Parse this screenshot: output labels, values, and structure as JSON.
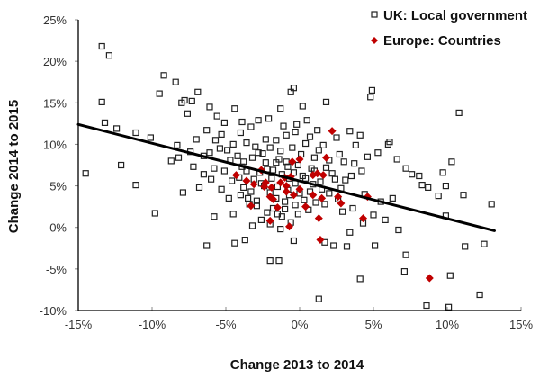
{
  "chart_data": {
    "type": "scatter",
    "title": "",
    "xlabel": "Change 2013 to 2014",
    "ylabel": "Change 2014 to 2015",
    "xlim": [
      -15,
      15
    ],
    "ylim": [
      -10,
      25
    ],
    "xticks": [
      -15,
      -10,
      -5,
      0,
      5,
      10,
      15
    ],
    "yticks": [
      -10,
      -5,
      0,
      5,
      10,
      15,
      20,
      25
    ],
    "xtick_labels": [
      "-15%",
      "-10%",
      "-5%",
      "0%",
      "5%",
      "10%",
      "15%"
    ],
    "ytick_labels": [
      "-10%",
      "-5%",
      "0%",
      "5%",
      "10%",
      "15%",
      "20%",
      "25%"
    ],
    "grid": false,
    "legend_position": "top-right",
    "colors": {
      "uk": "#222222",
      "europe": "#c00000",
      "trend": "#000000",
      "axis": "#000000"
    },
    "trendline": {
      "x": [
        -15,
        13.2
      ],
      "y": [
        12.4,
        -0.4
      ]
    },
    "series": [
      {
        "name": "UK: Local government",
        "marker": "square-open",
        "points": [
          [
            -13.4,
            21.8
          ],
          [
            -12.9,
            20.7
          ],
          [
            -13.4,
            15.1
          ],
          [
            -13.2,
            12.6
          ],
          [
            -12.4,
            11.9
          ],
          [
            -11.1,
            11.4
          ],
          [
            -14.5,
            6.5
          ],
          [
            -12.1,
            7.5
          ],
          [
            -11.1,
            5.1
          ],
          [
            -10.1,
            10.8
          ],
          [
            -9.5,
            16.1
          ],
          [
            -9.2,
            18.3
          ],
          [
            -8.4,
            17.5
          ],
          [
            -7.8,
            15.3
          ],
          [
            -8.0,
            15.0
          ],
          [
            -7.6,
            13.7
          ],
          [
            -9.8,
            1.7
          ],
          [
            -8.7,
            8.0
          ],
          [
            -7.0,
            10.6
          ],
          [
            -8.2,
            8.4
          ],
          [
            -7.2,
            7.3
          ],
          [
            -6.5,
            6.4
          ],
          [
            -6.0,
            5.8
          ],
          [
            -5.3,
            4.6
          ],
          [
            -5.7,
            10.5
          ],
          [
            -5.3,
            11.2
          ],
          [
            -4.9,
            9.3
          ],
          [
            -4.5,
            10.0
          ],
          [
            -3.9,
            12.7
          ],
          [
            -4.4,
            14.3
          ],
          [
            -5.1,
            12.6
          ],
          [
            -5.6,
            13.4
          ],
          [
            -6.1,
            14.5
          ],
          [
            -6.9,
            16.3
          ],
          [
            -7.3,
            15.2
          ],
          [
            -6.3,
            11.7
          ],
          [
            -4.2,
            8.6
          ],
          [
            -3.8,
            7.9
          ],
          [
            -3.2,
            8.4
          ],
          [
            -2.8,
            9.0
          ],
          [
            -2.3,
            7.8
          ],
          [
            -3.6,
            6.8
          ],
          [
            -4.1,
            6.0
          ],
          [
            -3.1,
            5.8
          ],
          [
            -2.6,
            5.3
          ],
          [
            -2.0,
            4.2
          ],
          [
            -1.6,
            3.5
          ],
          [
            -2.9,
            3.2
          ],
          [
            -3.4,
            2.8
          ],
          [
            -4.5,
            1.6
          ],
          [
            -5.8,
            1.3
          ],
          [
            -6.3,
            -2.2
          ],
          [
            -4.4,
            -1.9
          ],
          [
            -3.7,
            -1.5
          ],
          [
            -2.0,
            -4.0
          ],
          [
            -1.4,
            -4.0
          ],
          [
            -0.4,
            -1.6
          ],
          [
            -0.6,
            0.6
          ],
          [
            -1.2,
            1.3
          ],
          [
            -1.8,
            2.3
          ],
          [
            -2.6,
            0.9
          ],
          [
            -0.7,
            3.9
          ],
          [
            0.3,
            3.3
          ],
          [
            0.6,
            2.1
          ],
          [
            1.3,
            -8.6
          ],
          [
            1.7,
            -1.8
          ],
          [
            2.3,
            -2.2
          ],
          [
            3.2,
            -2.3
          ],
          [
            3.4,
            -0.6
          ],
          [
            4.1,
            -6.2
          ],
          [
            5.1,
            -2.2
          ],
          [
            4.3,
            0.5
          ],
          [
            5.0,
            1.5
          ],
          [
            5.8,
            0.9
          ],
          [
            6.7,
            -0.3
          ],
          [
            7.2,
            -3.3
          ],
          [
            7.1,
            -5.3
          ],
          [
            8.6,
            -9.4
          ],
          [
            10.1,
            -9.6
          ],
          [
            10.2,
            -5.8
          ],
          [
            9.9,
            1.4
          ],
          [
            11.2,
            -2.3
          ],
          [
            12.5,
            -2.0
          ],
          [
            12.2,
            -8.1
          ],
          [
            13.0,
            2.8
          ],
          [
            11.1,
            3.9
          ],
          [
            9.4,
            3.8
          ],
          [
            8.7,
            4.8
          ],
          [
            9.9,
            5.0
          ],
          [
            10.3,
            7.9
          ],
          [
            8.1,
            6.2
          ],
          [
            7.6,
            6.4
          ],
          [
            6.6,
            8.2
          ],
          [
            6.0,
            10.0
          ],
          [
            5.3,
            9.0
          ],
          [
            4.6,
            8.5
          ],
          [
            3.7,
            7.7
          ],
          [
            4.8,
            15.7
          ],
          [
            4.9,
            16.5
          ],
          [
            1.8,
            15.1
          ],
          [
            0.2,
            14.6
          ],
          [
            -0.6,
            16.3
          ],
          [
            -0.4,
            16.8
          ],
          [
            -1.3,
            14.3
          ],
          [
            -2.1,
            13.1
          ],
          [
            -2.8,
            12.9
          ],
          [
            -3.3,
            12.1
          ],
          [
            -0.2,
            12.4
          ],
          [
            0.5,
            12.9
          ],
          [
            1.2,
            11.7
          ],
          [
            2.5,
            10.8
          ],
          [
            3.4,
            11.6
          ],
          [
            10.8,
            13.8
          ],
          [
            6.1,
            10.3
          ],
          [
            7.2,
            7.1
          ],
          [
            9.7,
            6.6
          ],
          [
            8.3,
            5.1
          ],
          [
            6.3,
            3.5
          ],
          [
            5.5,
            3.1
          ],
          [
            4.4,
            4.0
          ],
          [
            3.1,
            5.7
          ],
          [
            2.2,
            6.5
          ],
          [
            2.8,
            4.7
          ],
          [
            3.0,
            7.9
          ],
          [
            3.8,
            9.9
          ],
          [
            4.1,
            11.1
          ],
          [
            1.6,
            9.9
          ],
          [
            0.7,
            10.9
          ],
          [
            -0.9,
            11.1
          ],
          [
            -1.6,
            10.5
          ],
          [
            -2.3,
            10.6
          ],
          [
            -1.3,
            9.2
          ],
          [
            -0.5,
            9.6
          ],
          [
            0.1,
            8.8
          ],
          [
            1.0,
            8.4
          ],
          [
            -0.1,
            7.5
          ],
          [
            -0.9,
            7.9
          ],
          [
            -1.6,
            7.8
          ],
          [
            -2.2,
            7.0
          ],
          [
            -2.7,
            6.6
          ],
          [
            -1.2,
            6.4
          ],
          [
            -0.7,
            5.9
          ],
          [
            -0.3,
            5.3
          ],
          [
            0.4,
            5.9
          ],
          [
            0.9,
            5.2
          ],
          [
            1.5,
            4.6
          ],
          [
            2.0,
            4.1
          ],
          [
            2.6,
            3.4
          ],
          [
            1.1,
            3.0
          ],
          [
            -0.3,
            2.7
          ],
          [
            -1.0,
            2.2
          ],
          [
            -1.5,
            1.6
          ],
          [
            -2.2,
            1.8
          ],
          [
            -2.9,
            2.6
          ],
          [
            -3.3,
            4.3
          ],
          [
            -3.8,
            4.8
          ],
          [
            -4.6,
            5.6
          ],
          [
            -5.1,
            6.8
          ],
          [
            -5.8,
            7.1
          ],
          [
            -6.5,
            8.6
          ],
          [
            -7.4,
            9.1
          ],
          [
            -8.3,
            9.9
          ],
          [
            -7.9,
            4.2
          ],
          [
            -6.8,
            4.8
          ],
          [
            -4.8,
            3.5
          ],
          [
            -4.0,
            3.9
          ],
          [
            -3.5,
            3.5
          ],
          [
            -1.9,
            5.9
          ],
          [
            -1.5,
            4.9
          ],
          [
            -0.8,
            4.5
          ],
          [
            0.0,
            4.1
          ],
          [
            0.7,
            4.3
          ],
          [
            1.4,
            5.5
          ],
          [
            2.4,
            5.8
          ],
          [
            3.5,
            6.2
          ],
          [
            4.2,
            6.8
          ],
          [
            -2.5,
            8.9
          ],
          [
            -3.0,
            9.7
          ],
          [
            -3.6,
            10.2
          ],
          [
            -4.0,
            11.4
          ],
          [
            -1.1,
            12.2
          ],
          [
            -0.3,
            11.5
          ],
          [
            0.4,
            10.1
          ],
          [
            1.3,
            9.3
          ],
          [
            2.0,
            8.1
          ],
          [
            2.7,
            8.8
          ],
          [
            -1.8,
            6.9
          ],
          [
            -2.4,
            5.0
          ],
          [
            -3.9,
            7.3
          ],
          [
            -4.7,
            8.1
          ],
          [
            -5.4,
            9.5
          ],
          [
            -6.1,
            9.0
          ],
          [
            -0.4,
            6.6
          ],
          [
            0.2,
            6.2
          ],
          [
            0.8,
            7.1
          ],
          [
            1.8,
            7.2
          ],
          [
            -1.0,
            3.1
          ],
          [
            -0.1,
            1.6
          ],
          [
            1.7,
            2.8
          ],
          [
            2.9,
            1.9
          ],
          [
            3.6,
            2.3
          ],
          [
            -2.0,
            0.4
          ],
          [
            -3.2,
            0.2
          ],
          [
            -1.3,
            -0.2
          ],
          [
            -0.8,
            7.3
          ],
          [
            -1.4,
            8.2
          ],
          [
            -2.0,
            9.6
          ],
          [
            1.0,
            6.8
          ]
        ]
      },
      {
        "name": "Europe: Countries",
        "marker": "diamond-filled",
        "points": [
          [
            2.2,
            11.6
          ],
          [
            1.8,
            8.4
          ],
          [
            -0.5,
            7.9
          ],
          [
            0.0,
            8.2
          ],
          [
            0.9,
            6.3
          ],
          [
            1.2,
            6.5
          ],
          [
            1.6,
            6.3
          ],
          [
            -0.9,
            5.0
          ],
          [
            -1.3,
            5.4
          ],
          [
            -1.0,
            6.0
          ],
          [
            -0.6,
            6.1
          ],
          [
            -0.4,
            3.9
          ],
          [
            0.9,
            3.9
          ],
          [
            1.5,
            3.5
          ],
          [
            0.4,
            2.5
          ],
          [
            1.3,
            1.1
          ],
          [
            1.4,
            -1.5
          ],
          [
            4.3,
            1.1
          ],
          [
            4.6,
            3.7
          ],
          [
            2.6,
            3.7
          ],
          [
            2.8,
            2.9
          ],
          [
            -2.0,
            3.7
          ],
          [
            -2.3,
            5.4
          ],
          [
            -2.6,
            6.9
          ],
          [
            -3.6,
            5.6
          ],
          [
            -4.3,
            6.3
          ],
          [
            -3.1,
            5.2
          ],
          [
            -2.4,
            4.9
          ],
          [
            -1.8,
            3.4
          ],
          [
            -1.5,
            2.4
          ],
          [
            -2.0,
            0.8
          ],
          [
            -0.7,
            0.1
          ],
          [
            -0.9,
            4.3
          ],
          [
            0.0,
            4.6
          ],
          [
            -3.3,
            2.6
          ],
          [
            -1.9,
            4.8
          ],
          [
            8.8,
            -6.1
          ]
        ]
      }
    ]
  }
}
